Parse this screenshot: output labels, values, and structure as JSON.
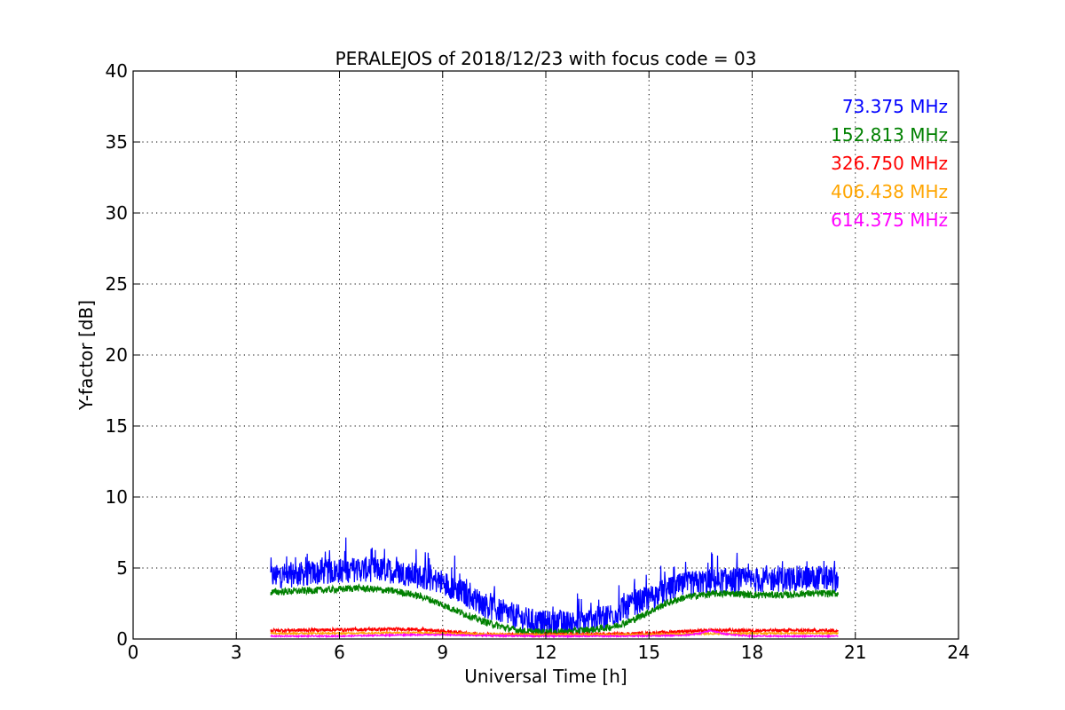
{
  "chart_data": {
    "type": "line",
    "title": "PERALEJOS of 2018/12/23 with focus code = 03",
    "xlabel": "Universal Time [h]",
    "ylabel": "Y-factor [dB]",
    "xlim": [
      0,
      24
    ],
    "ylim": [
      0,
      40
    ],
    "xticks": [
      0,
      3,
      6,
      9,
      12,
      15,
      18,
      21,
      24
    ],
    "yticks": [
      0,
      5,
      10,
      15,
      20,
      25,
      30,
      35,
      40
    ],
    "xtick_labels": [
      "0",
      "3",
      "6",
      "9",
      "12",
      "15",
      "18",
      "21",
      "24"
    ],
    "ytick_labels": [
      "0",
      "5",
      "10",
      "15",
      "20",
      "25",
      "30",
      "35",
      "40"
    ],
    "grid": true,
    "legend_position": "top-right",
    "series": [
      {
        "name": "73.375 MHz",
        "color": "#0000ff",
        "x": [
          4.0,
          5.0,
          6.0,
          6.5,
          7.0,
          7.5,
          8.0,
          8.5,
          9.0,
          9.5,
          10.0,
          10.5,
          11.0,
          11.5,
          12.0,
          12.5,
          13.0,
          13.5,
          14.0,
          14.5,
          15.0,
          15.5,
          16.0,
          16.5,
          17.0,
          17.5,
          18.0,
          18.5,
          19.0,
          19.5,
          20.0,
          20.5
        ],
        "y": [
          4.4,
          4.6,
          4.8,
          4.9,
          4.9,
          4.8,
          4.6,
          4.3,
          4.0,
          3.4,
          2.7,
          2.1,
          1.7,
          1.3,
          1.1,
          1.1,
          1.2,
          1.4,
          1.8,
          2.4,
          2.9,
          3.4,
          3.8,
          4.0,
          4.1,
          4.1,
          4.1,
          4.2,
          4.2,
          4.3,
          4.3,
          4.2
        ],
        "noise": 0.9
      },
      {
        "name": "152.813 MHz",
        "color": "#008000",
        "x": [
          4.0,
          5.0,
          6.0,
          6.5,
          7.0,
          7.5,
          8.0,
          8.5,
          9.0,
          9.5,
          10.0,
          10.5,
          11.0,
          11.5,
          12.0,
          12.5,
          13.0,
          13.5,
          14.0,
          14.5,
          15.0,
          15.5,
          16.0,
          16.5,
          17.0,
          17.5,
          18.0,
          18.5,
          19.0,
          19.5,
          20.0,
          20.5
        ],
        "y": [
          3.3,
          3.4,
          3.5,
          3.6,
          3.5,
          3.4,
          3.2,
          2.9,
          2.4,
          1.9,
          1.4,
          1.0,
          0.7,
          0.5,
          0.5,
          0.5,
          0.6,
          0.7,
          0.9,
          1.3,
          1.9,
          2.5,
          2.9,
          3.1,
          3.2,
          3.2,
          3.1,
          3.1,
          3.1,
          3.2,
          3.2,
          3.2
        ],
        "noise": 0.25
      },
      {
        "name": "326.750 MHz",
        "color": "#ff0000",
        "x": [
          4.0,
          6.0,
          8.0,
          9.0,
          10.0,
          11.0,
          12.0,
          13.0,
          14.0,
          15.0,
          16.0,
          17.0,
          18.0,
          19.0,
          20.5
        ],
        "y": [
          0.6,
          0.65,
          0.7,
          0.55,
          0.35,
          0.3,
          0.3,
          0.3,
          0.35,
          0.4,
          0.55,
          0.6,
          0.6,
          0.6,
          0.6
        ],
        "noise": 0.12
      },
      {
        "name": "406.438 MHz",
        "color": "#ffa500",
        "x": [
          4.0,
          6.0,
          8.0,
          10.0,
          12.0,
          14.0,
          16.0,
          18.0,
          20.5
        ],
        "y": [
          0.4,
          0.4,
          0.45,
          0.35,
          0.3,
          0.3,
          0.35,
          0.4,
          0.4
        ],
        "noise": 0.06
      },
      {
        "name": "614.375 MHz",
        "color": "#ff00ff",
        "x": [
          4.0,
          6.0,
          8.0,
          9.0,
          10.0,
          12.0,
          14.0,
          16.0,
          16.5,
          16.8,
          17.2,
          18.0,
          20.5
        ],
        "y": [
          0.2,
          0.2,
          0.3,
          0.3,
          0.25,
          0.2,
          0.2,
          0.25,
          0.4,
          0.6,
          0.35,
          0.2,
          0.2
        ],
        "noise": 0.05
      }
    ]
  }
}
